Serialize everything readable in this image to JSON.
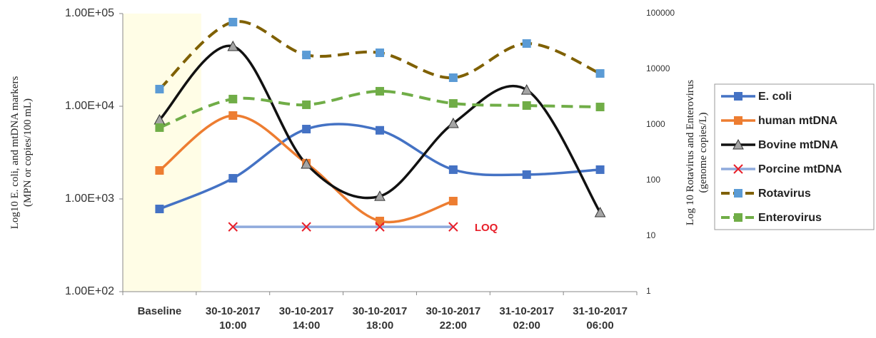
{
  "chart_data": {
    "type": "line",
    "categories": [
      "Baseline",
      "30-10-2017 10:00",
      "30-10-2017 14:00",
      "30-10-2017 18:00",
      "30-10-2017 22:00",
      "31-10-2017 02:00",
      "31-10-2017 06:00"
    ],
    "ylabel": [
      "Log10 E. coli, and mtDNA markers",
      "(MPN or copies/100 mL)"
    ],
    "y2label": [
      "Log 10  Rotavirus and Enterovirus",
      "(genome copies/L)"
    ],
    "ylog": true,
    "y2log": true,
    "ylim": [
      100,
      100000
    ],
    "yticks": [
      {
        "value": 100,
        "label": "1.00E+02"
      },
      {
        "value": 1000,
        "label": "1.00E+03"
      },
      {
        "value": 10000,
        "label": "1.00E+04"
      },
      {
        "value": 100000,
        "label": "1.00E+05"
      }
    ],
    "y2lim": [
      1,
      100000
    ],
    "y2ticks": [
      1,
      10,
      100,
      1000,
      10000,
      100000
    ],
    "shaded_category": 0,
    "shade_color": "#fffde6",
    "annotation": "LOQ",
    "annotation_color": "#e8202a",
    "series": [
      {
        "name": "E. coli",
        "color": "#4472c4",
        "marker": "square",
        "marker_color": "#4472c4",
        "dashed": false,
        "values": [
          780,
          1670,
          5670,
          5500,
          2070,
          1830,
          2070
        ]
      },
      {
        "name": "human mtDNA",
        "color": "#ed7d31",
        "marker": "square",
        "marker_color": "#ed7d31",
        "dashed": false,
        "values": [
          2030,
          7940,
          2430,
          578,
          948,
          null,
          null
        ]
      },
      {
        "name": "Bovine mtDNA",
        "color": "#111111",
        "marker": "triangle",
        "marker_color": "#a5a5a5",
        "dashed": false,
        "values": [
          7140,
          44300,
          2380,
          1070,
          6540,
          15000,
          714
        ]
      },
      {
        "name": "Porcine mtDNA",
        "color": "#8faadc",
        "marker": "x",
        "marker_color": "#e8202a",
        "dashed": false,
        "values": [
          null,
          500,
          500,
          500,
          500,
          null,
          null
        ]
      },
      {
        "name": "Rotavirus",
        "color": "#7f6000",
        "marker": "square",
        "marker_color": "#5b9bd5",
        "dashed": true,
        "axis": "y2",
        "values": [
          4380,
          70200,
          18000,
          19700,
          7020,
          28900,
          8370
        ]
      },
      {
        "name": "Enterovirus",
        "color": "#70ad47",
        "marker": "square",
        "marker_color": "#70ad47",
        "dashed": true,
        "axis": "y2",
        "values": [
          890,
          2900,
          2290,
          4010,
          2420,
          2220,
          2090
        ]
      }
    ]
  }
}
